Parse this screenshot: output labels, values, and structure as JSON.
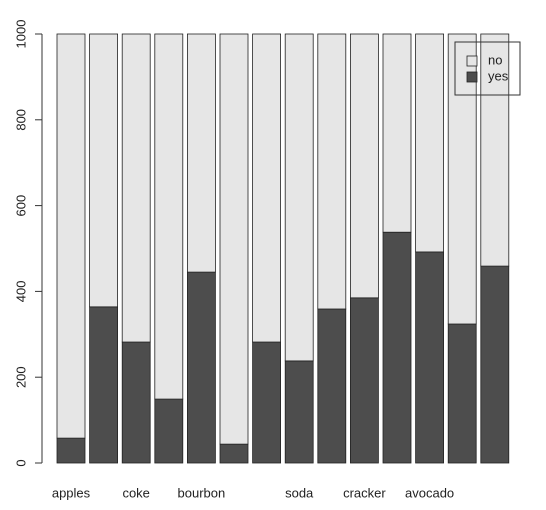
{
  "chart_data": {
    "type": "stacked_bar",
    "categories": [
      "apples",
      null,
      "coke",
      null,
      "bourbon",
      null,
      null,
      "soda",
      null,
      "cracker",
      null,
      "avocado",
      null,
      null
    ],
    "series": [
      {
        "name": "yes",
        "color": "#4d4d4d",
        "values": [
          58,
          364,
          282,
          149,
          445,
          44,
          282,
          238,
          359,
          385,
          538,
          492,
          324,
          459
        ]
      },
      {
        "name": "no",
        "color": "#e6e6e6",
        "values": [
          942,
          636,
          718,
          851,
          555,
          956,
          718,
          762,
          641,
          615,
          462,
          508,
          676,
          541
        ]
      }
    ],
    "ylim": [
      0,
      1000
    ],
    "yticks": [
      0,
      200,
      400,
      600,
      800,
      1000
    ],
    "legend": "top-right"
  }
}
